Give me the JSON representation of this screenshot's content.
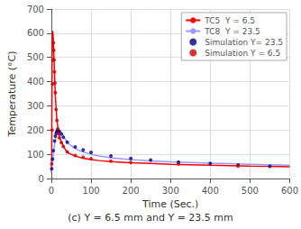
{
  "chart_data": {
    "type": "line",
    "xlabel": "Time (Sec.)",
    "ylabel": "Temperature (°C)",
    "caption": "(c) Y = 6.5 mm and Y = 23.5 mm",
    "xlim": [
      0,
      600
    ],
    "ylim": [
      0,
      700
    ],
    "xticks": [
      0,
      100,
      200,
      300,
      400,
      500,
      600
    ],
    "yticks": [
      0,
      100,
      200,
      300,
      400,
      500,
      600,
      700
    ],
    "grid": true,
    "legend": "upper right",
    "series": [
      {
        "name": "TC5  Y = 6.5",
        "type": "line",
        "line_style": "solid",
        "color": "#ff0000",
        "x": [
          0,
          1,
          2,
          3,
          4,
          5,
          6,
          7,
          8,
          9,
          10,
          12,
          14,
          16,
          18,
          20,
          22,
          25,
          28,
          30,
          35,
          40,
          45,
          50,
          60,
          70,
          80,
          100,
          120,
          150,
          180,
          200,
          250,
          300,
          350,
          400,
          450,
          500,
          550,
          600
        ],
        "values": [
          25,
          100,
          530,
          610,
          600,
          570,
          530,
          480,
          430,
          385,
          345,
          285,
          245,
          215,
          195,
          175,
          165,
          152,
          142,
          135,
          120,
          110,
          104,
          100,
          93,
          88,
          84,
          78,
          74,
          70,
          67,
          65,
          62,
          59,
          57,
          55,
          53,
          51,
          50,
          48
        ]
      },
      {
        "name": "TC8  Y = 23.5",
        "type": "line",
        "line_style": "solid",
        "color": "#9999ff",
        "x": [
          0,
          2,
          4,
          6,
          8,
          10,
          12,
          14,
          16,
          18,
          20,
          22,
          25,
          28,
          30,
          35,
          40,
          50,
          60,
          70,
          80,
          100,
          120,
          150,
          180,
          200,
          250,
          300,
          350,
          400,
          450,
          500,
          550,
          600
        ],
        "values": [
          25,
          55,
          85,
          112,
          138,
          158,
          175,
          188,
          196,
          200,
          200,
          198,
          192,
          185,
          178,
          162,
          150,
          135,
          124,
          116,
          110,
          100,
          93,
          86,
          81,
          78,
          73,
          69,
          66,
          63,
          61,
          59,
          57,
          55
        ]
      },
      {
        "name": "Simulation Y= 23.5",
        "type": "scatter",
        "marker": "circle",
        "color": "#00008b",
        "x": [
          1,
          3,
          5,
          8,
          10,
          12,
          14,
          16,
          18,
          20,
          25,
          30,
          40,
          60,
          80,
          100,
          150,
          200,
          250,
          320,
          400,
          470,
          550
        ],
        "values": [
          40,
          80,
          115,
          155,
          175,
          187,
          195,
          198,
          197,
          193,
          183,
          170,
          150,
          130,
          118,
          108,
          93,
          83,
          76,
          68,
          62,
          56,
          50
        ]
      },
      {
        "name": "Simulation Y = 6.5",
        "type": "scatter",
        "marker": "circle",
        "color": "#cc0000",
        "x": [
          1,
          2,
          3,
          4,
          5,
          6,
          7,
          8,
          9,
          10,
          12,
          14,
          16,
          18,
          20,
          25,
          30,
          40,
          60,
          80,
          100,
          150,
          200,
          320,
          470
        ],
        "values": [
          60,
          200,
          390,
          490,
          560,
          530,
          490,
          440,
          395,
          355,
          285,
          240,
          205,
          185,
          168,
          148,
          132,
          110,
          95,
          88,
          82,
          72,
          66,
          60,
          51
        ]
      }
    ]
  }
}
